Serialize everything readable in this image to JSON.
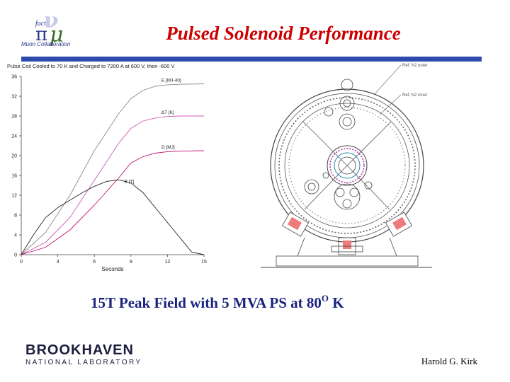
{
  "header": {
    "title": "Pulsed Solenoid Performance",
    "logo": {
      "glyph_nu": "ν",
      "glyph_mu": "μ",
      "glyph_pi": "π",
      "word_fact": "fact",
      "collaboration": "Muon Collaboration"
    }
  },
  "chart_data": {
    "type": "line",
    "title": "Pulse Coil Cooled to 70 K and Charged to 7200 A at 600 V, then -600 V",
    "xlabel": "Seconds",
    "ylabel": "",
    "x_ticks": [
      "0",
      "3",
      "6",
      "9",
      "12",
      "15"
    ],
    "y_ticks": [
      "0",
      "4",
      "8",
      "12",
      "16",
      "20",
      "24",
      "28",
      "32",
      "36"
    ],
    "xlim": [
      0,
      15
    ],
    "ylim": [
      0,
      36
    ],
    "grid": false,
    "series": [
      {
        "name": "E [MJ-40]",
        "color": "#8a8a8a",
        "x": [
          0,
          2,
          4,
          6,
          8,
          9,
          10,
          11,
          12,
          13,
          15
        ],
        "y": [
          0,
          4.5,
          12,
          21,
          28.5,
          31.5,
          33.2,
          34,
          34.3,
          34.4,
          34.5
        ]
      },
      {
        "name": "ΔT [K]",
        "color": "#d05ab8",
        "x": [
          0,
          2,
          4,
          6,
          8,
          9,
          10,
          11,
          12,
          13,
          15
        ],
        "y": [
          0,
          2.5,
          7.5,
          15,
          22.5,
          25.5,
          27,
          27.6,
          27.9,
          28,
          28
        ]
      },
      {
        "name": "Ω [MJ]",
        "color": "#c21070",
        "x": [
          0,
          2,
          4,
          6,
          8,
          9,
          10,
          11,
          12,
          13,
          15
        ],
        "y": [
          0,
          1.5,
          5,
          10,
          15.5,
          18.5,
          19.8,
          20.5,
          20.8,
          20.9,
          21
        ]
      },
      {
        "name": "B [T]",
        "color": "#222222",
        "x": [
          0,
          1,
          2,
          3,
          4,
          5,
          6,
          7,
          8,
          9,
          10,
          11,
          12,
          13,
          14,
          15
        ],
        "y": [
          0,
          4,
          7.5,
          9.5,
          11,
          12.5,
          13.8,
          14.8,
          15.1,
          14.5,
          12.5,
          9.5,
          6.5,
          3.5,
          0.5,
          0
        ]
      }
    ]
  },
  "diagram": {
    "label_outer": "Ref. N2 outer",
    "label_inner": "Ref. N2 inner"
  },
  "caption": {
    "prefix": "15T Peak Field with 5 MVA PS at 80",
    "superscript": "O",
    "suffix": " K"
  },
  "footer": {
    "lab_name": "BROOKHAVEN",
    "lab_sub": "NATIONAL LABORATORY",
    "author": "Harold G. Kirk"
  }
}
